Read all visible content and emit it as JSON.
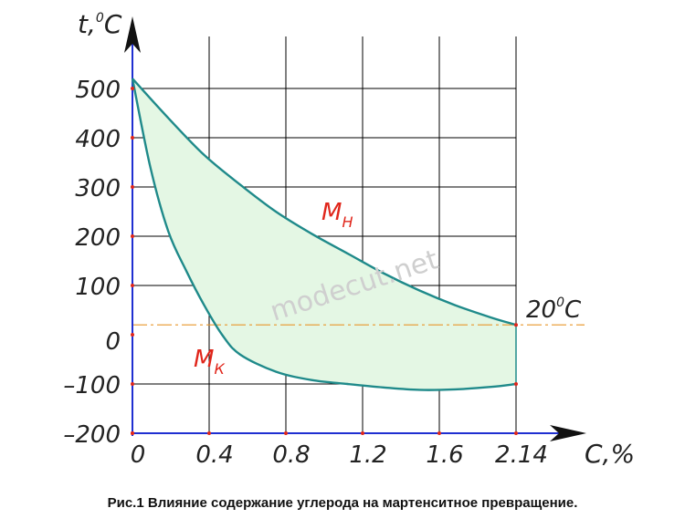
{
  "chart_data": {
    "type": "line",
    "x_ticks": [
      "0",
      "0.4",
      "0.8",
      "1.2",
      "1.6",
      "2.14"
    ],
    "y_ticks": [
      "500",
      "400",
      "300",
      "200",
      "100",
      "0",
      "-100",
      "-200"
    ],
    "xlim": [
      0,
      2.14
    ],
    "ylim": [
      -200,
      500
    ],
    "grid": true,
    "y_axis_label": "t,",
    "y_axis_label_sup": "0",
    "y_axis_label_unit": "C",
    "x_axis_label": "C,%",
    "reference_line": {
      "y": 20,
      "label_sup": "0",
      "label_unit": "C",
      "label_value": "20"
    },
    "series": [
      {
        "name": "M",
        "subscript": "Н",
        "color": "#1f8a8a",
        "x": [
          0,
          0.2,
          0.4,
          0.6,
          0.8,
          1.0,
          1.2,
          1.4,
          1.6,
          1.8,
          2.0,
          2.14
        ],
        "y": [
          520,
          440,
          365,
          305,
          250,
          205,
          165,
          125,
          90,
          60,
          35,
          20
        ]
      },
      {
        "name": "M",
        "subscript": "К",
        "color": "#1f8a8a",
        "x": [
          0,
          0.1,
          0.2,
          0.3,
          0.4,
          0.5,
          0.6,
          0.8,
          1.0,
          1.2,
          1.4,
          1.6,
          1.8,
          2.0,
          2.14
        ],
        "y": [
          520,
          340,
          210,
          130,
          60,
          0,
          -40,
          -75,
          -92,
          -100,
          -107,
          -112,
          -111,
          -106,
          -100
        ]
      }
    ],
    "fill_between_color": "#e4f7e4"
  },
  "watermark": "modecut.net",
  "caption": "Рис.1 Влияние содержание углерода на мартенситное превращение."
}
